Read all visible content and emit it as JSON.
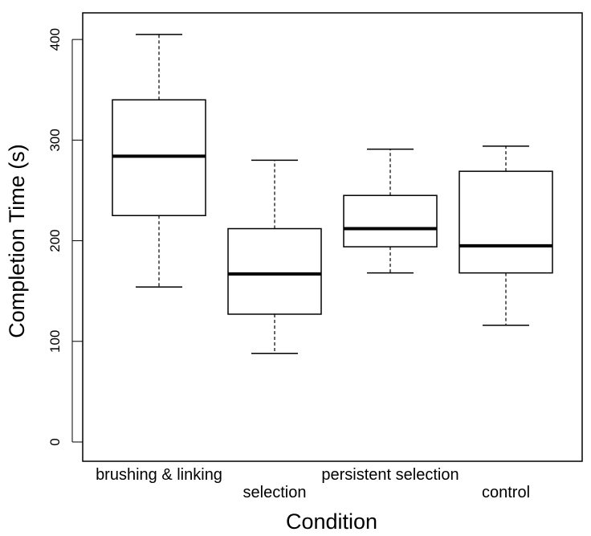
{
  "chart_data": {
    "type": "boxplot",
    "xlabel": "Condition",
    "ylabel": "Completion Time (s)",
    "ylim": [
      0,
      420
    ],
    "yticks": [
      0,
      100,
      200,
      300,
      400
    ],
    "grid": false,
    "categories": [
      "brushing & linking",
      "selection",
      "persistent selection",
      "control"
    ],
    "boxes": [
      {
        "category": "brushing & linking",
        "min": 154,
        "q1": 225,
        "median": 284,
        "q3": 340,
        "max": 405
      },
      {
        "category": "selection",
        "min": 88,
        "q1": 127,
        "median": 167,
        "q3": 212,
        "max": 280
      },
      {
        "category": "persistent selection",
        "min": 168,
        "q1": 194,
        "median": 212,
        "q3": 245,
        "max": 291
      },
      {
        "category": "control",
        "min": 116,
        "q1": 168,
        "median": 195,
        "q3": 269,
        "max": 294
      }
    ]
  }
}
